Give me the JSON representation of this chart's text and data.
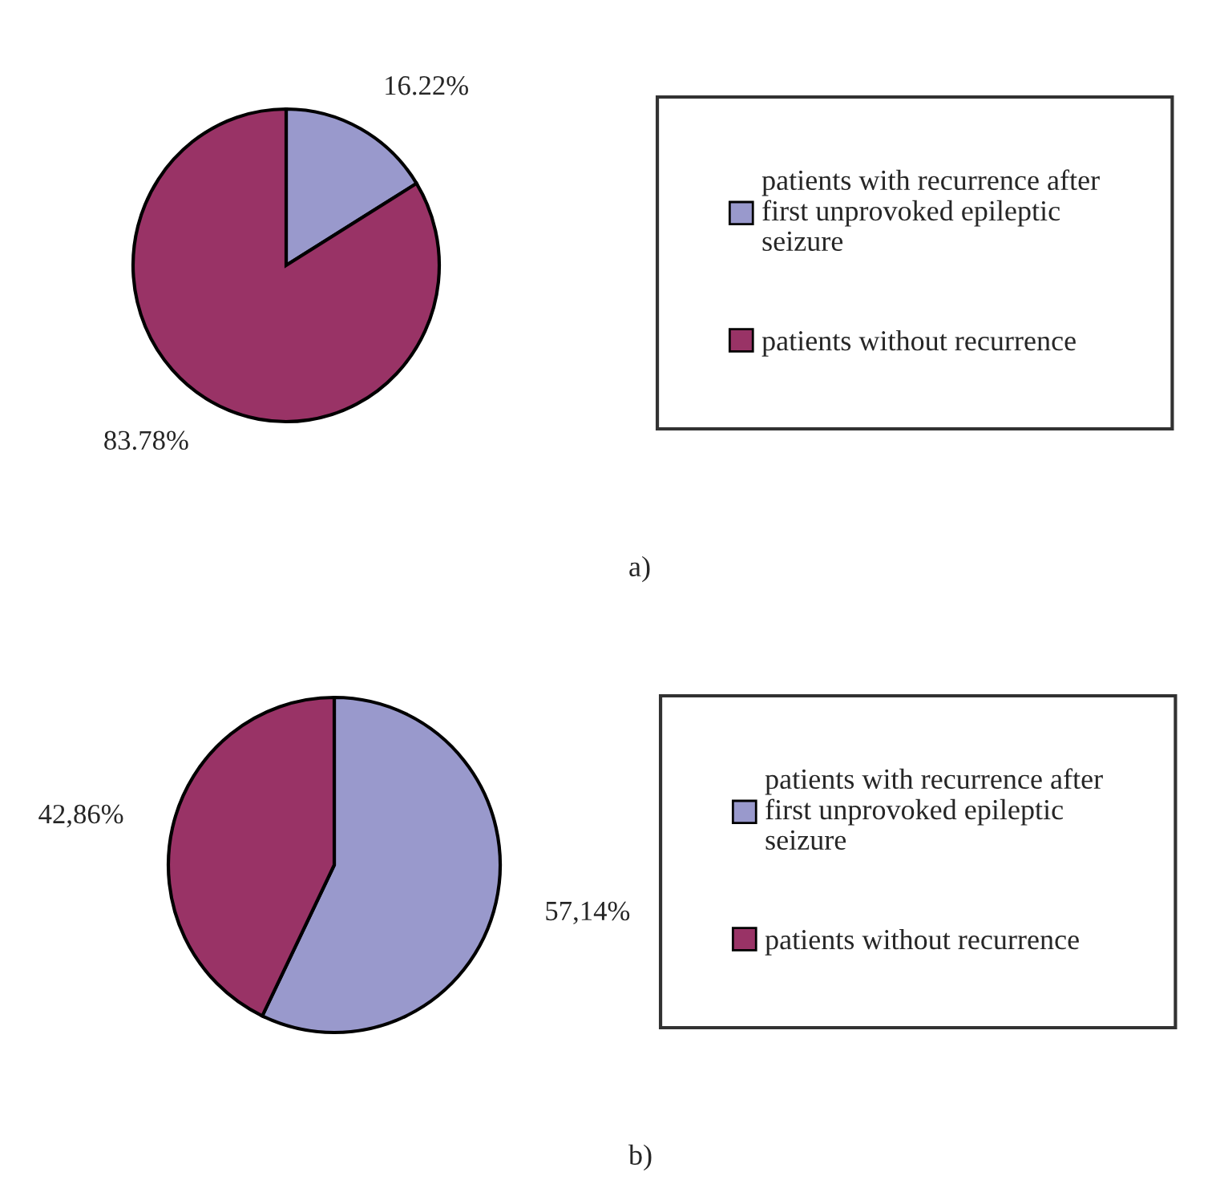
{
  "chart_data": [
    {
      "type": "pie",
      "categories": [
        "patients with recurrence after\nfirst unprovoked epileptic\nseizure",
        "patients without recurrence"
      ],
      "values": [
        16.22,
        83.78
      ],
      "value_labels": [
        "16.22%",
        "83.78%"
      ],
      "colors": [
        "#9999cc",
        "#993366"
      ],
      "legend": "right",
      "annotations": [
        "a)"
      ]
    },
    {
      "type": "pie",
      "categories": [
        "patients with recurrence after\nfirst unprovoked epileptic\nseizure",
        "patients without recurrence"
      ],
      "values": [
        57.14,
        42.86
      ],
      "value_labels": [
        "57,14%",
        "42,86%"
      ],
      "colors": [
        "#9999cc",
        "#993366"
      ],
      "legend": "right",
      "annotations": [
        "b)"
      ]
    }
  ]
}
